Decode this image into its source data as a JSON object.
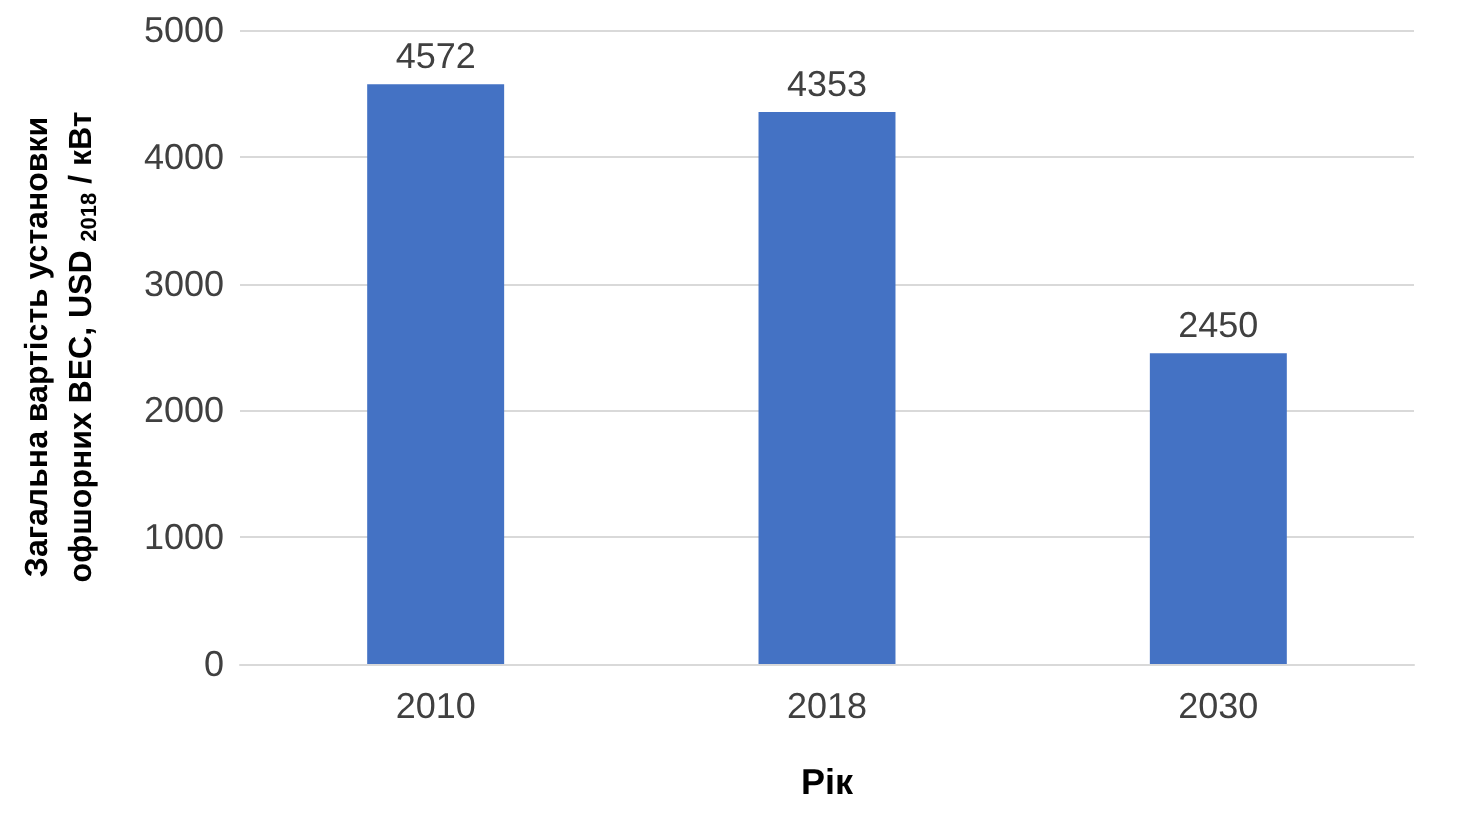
{
  "chart_data": {
    "type": "bar",
    "xlabel": "Рік",
    "ylabel": "Загальна вартість установки\nофшорних ВЕС, USD $_{2018}$ / кВт",
    "categories": [
      "2010",
      "2018",
      "2030"
    ],
    "values": [
      4572,
      4353,
      2450
    ],
    "color": "#4472c4",
    "ylim": [
      0,
      5000
    ],
    "yticks": [
      0,
      1000,
      2000,
      3000,
      4000,
      5000
    ],
    "grid": "y",
    "data_labels": true
  }
}
